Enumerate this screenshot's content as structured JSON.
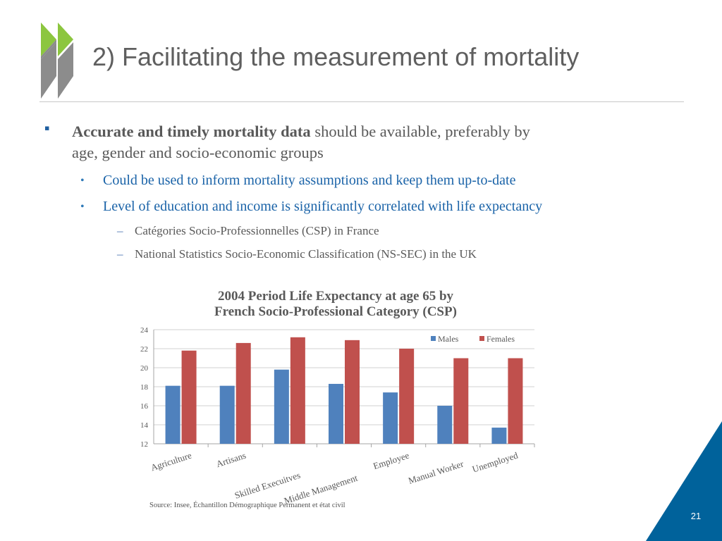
{
  "slide": {
    "title": "2) Facilitating the measurement of mortality",
    "bullet": {
      "bold_text": "Accurate and timely mortality data",
      "rest_line1": " should be available, preferably by",
      "line2": "age, gender and socio-economic groups",
      "marker": "▪"
    },
    "sub_bullets": [
      "Could be used to inform mortality assumptions and keep them up-to-date",
      "Level of education and income is significantly correlated with life expectancy"
    ],
    "sub_bullet_marker": "•",
    "sub_sub_bullets": [
      "Catégories Socio-Professionnelles (CSP) in France",
      "National Statistics Socio-Economic Classification (NS-SEC) in the UK"
    ],
    "sub_sub_marker": "–",
    "source": "Source:  Insee, Échantillon Démographique Permanent et état civil",
    "page_number": "21",
    "colors": {
      "accent_blue": "#00629b",
      "logo_green": "#8cc63f",
      "logo_gray": "#8c8c8c"
    }
  },
  "chart_data": {
    "type": "bar",
    "title_line1": "2004 Period Life Expectancy at age 65 by",
    "title_line2": "French Socio-Professional Category (CSP)",
    "categories": [
      "Agriculture",
      "Artisans",
      "Skilled Execuitves",
      "Middle Management",
      "Employee",
      "Manual Worker",
      "Unemployed"
    ],
    "series": [
      {
        "name": "Males",
        "color": "#4f81bd",
        "values": [
          18.1,
          18.1,
          19.8,
          18.3,
          17.4,
          16.0,
          13.7
        ]
      },
      {
        "name": "Females",
        "color": "#c0504d",
        "values": [
          21.8,
          22.6,
          23.2,
          22.9,
          22.0,
          21.0,
          21.0
        ]
      }
    ],
    "ylim": [
      12,
      24
    ],
    "yticks": [
      12,
      14,
      16,
      18,
      20,
      22,
      24
    ],
    "grid": true,
    "legend": "top-right"
  }
}
